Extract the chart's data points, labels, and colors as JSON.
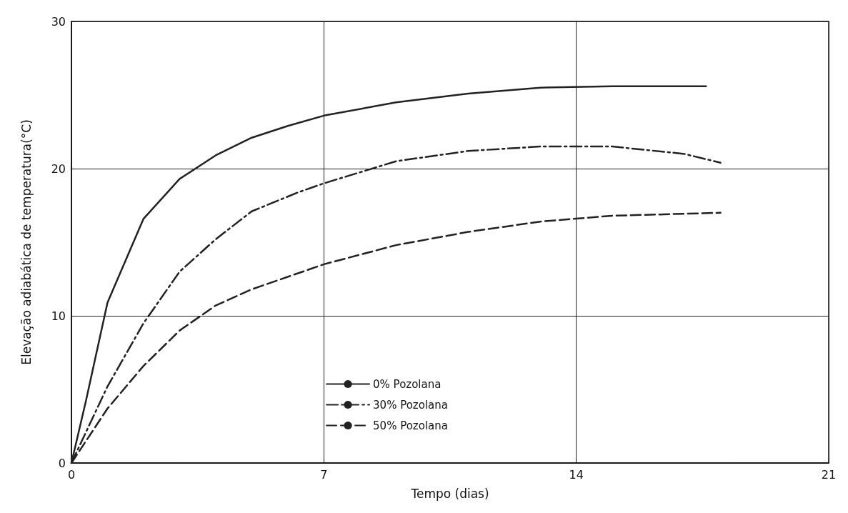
{
  "chart_data": {
    "type": "line",
    "xlabel": "Tempo (dias)",
    "ylabel": "Elevação adiabática de temperatura(°C)",
    "xlim": [
      0,
      21
    ],
    "xticks": [
      0,
      7,
      14,
      21
    ],
    "ylim": [
      0,
      30
    ],
    "yticks": [
      0,
      10,
      20,
      30
    ],
    "grid": true,
    "legend": "bottom",
    "marker": "none",
    "series": [
      {
        "name": "0% Pozolana",
        "color": "#222222",
        "line_style": "solid",
        "x": [
          0,
          0.4,
          1,
          2,
          3,
          4,
          5,
          6,
          7,
          9,
          11,
          13,
          15,
          17.6
        ],
        "values": [
          0,
          4.2,
          10.9,
          16.6,
          19.3,
          20.9,
          22.1,
          22.9,
          23.6,
          24.5,
          25.1,
          25.5,
          25.6,
          25.6
        ]
      },
      {
        "name": "30% Pozolana",
        "color": "#222222",
        "line_style": "dashdot",
        "x": [
          0,
          1,
          2,
          3,
          4,
          5,
          6.3,
          7,
          9,
          11,
          13,
          15,
          17,
          18
        ],
        "values": [
          0,
          5.2,
          9.5,
          13,
          15.2,
          17.1,
          18.4,
          19,
          20.5,
          21.2,
          21.5,
          21.5,
          21,
          20.4
        ]
      },
      {
        "name": "50% Pozolana",
        "color": "#222222",
        "line_style": "dashed",
        "x": [
          0,
          1,
          2,
          3,
          4,
          5,
          7,
          9,
          11,
          13,
          15,
          18
        ],
        "values": [
          0,
          3.7,
          6.6,
          9,
          10.7,
          11.8,
          13.5,
          14.8,
          15.7,
          16.4,
          16.8,
          17
        ]
      }
    ]
  }
}
